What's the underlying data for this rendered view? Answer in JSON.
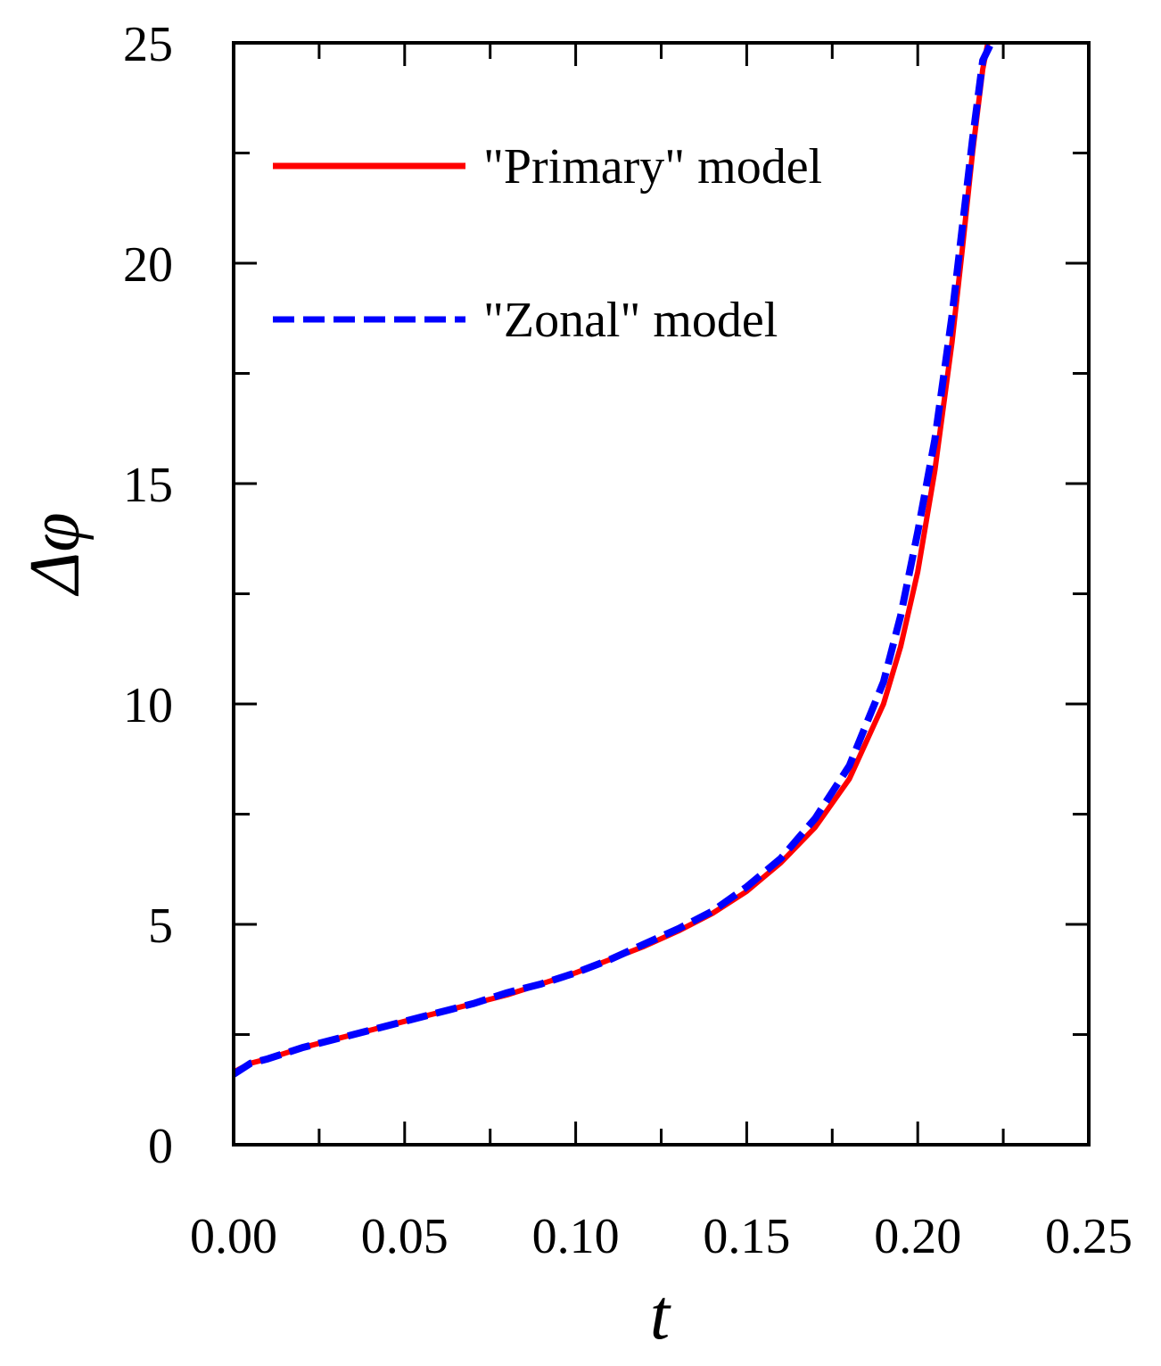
{
  "chart_data": {
    "type": "line",
    "title": "",
    "xlabel": "t",
    "ylabel": "Δφ",
    "xlim": [
      0,
      0.25
    ],
    "ylim": [
      0,
      25
    ],
    "x_ticks": [
      "0.00",
      "0.05",
      "0.10",
      "0.15",
      "0.20",
      "0.25"
    ],
    "y_ticks": [
      "0",
      "5",
      "10",
      "15",
      "20",
      "25"
    ],
    "legend_position": "top-left",
    "series": [
      {
        "name": "\"Primary\" model",
        "color": "#ff0000",
        "style": "solid",
        "x": [
          0,
          0.005,
          0.01,
          0.02,
          0.03,
          0.04,
          0.05,
          0.06,
          0.07,
          0.08,
          0.09,
          0.1,
          0.11,
          0.12,
          0.13,
          0.14,
          0.15,
          0.16,
          0.17,
          0.18,
          0.19,
          0.195,
          0.2,
          0.205,
          0.21,
          0.213,
          0.216,
          0.219,
          0.2205
        ],
        "values": [
          1.65,
          1.85,
          1.95,
          2.2,
          2.4,
          2.6,
          2.8,
          3.0,
          3.2,
          3.4,
          3.65,
          3.9,
          4.2,
          4.5,
          4.85,
          5.25,
          5.75,
          6.4,
          7.2,
          8.3,
          10.0,
          11.3,
          13.0,
          15.3,
          18.2,
          20.3,
          22.5,
          24.4,
          25.0
        ]
      },
      {
        "name": "\"Zonal\" model",
        "color": "#0000ff",
        "style": "dashed",
        "x": [
          0,
          0.005,
          0.01,
          0.02,
          0.03,
          0.04,
          0.05,
          0.06,
          0.07,
          0.08,
          0.09,
          0.1,
          0.11,
          0.12,
          0.13,
          0.14,
          0.15,
          0.16,
          0.17,
          0.18,
          0.19,
          0.195,
          0.2,
          0.205,
          0.21,
          0.213,
          0.216,
          0.219,
          0.2215
        ],
        "values": [
          1.6,
          1.85,
          1.95,
          2.2,
          2.4,
          2.6,
          2.8,
          3.0,
          3.2,
          3.45,
          3.65,
          3.9,
          4.2,
          4.55,
          4.9,
          5.3,
          5.85,
          6.5,
          7.4,
          8.6,
          10.5,
          12.0,
          13.9,
          16.0,
          18.8,
          20.8,
          22.8,
          24.6,
          25.0
        ]
      }
    ]
  }
}
